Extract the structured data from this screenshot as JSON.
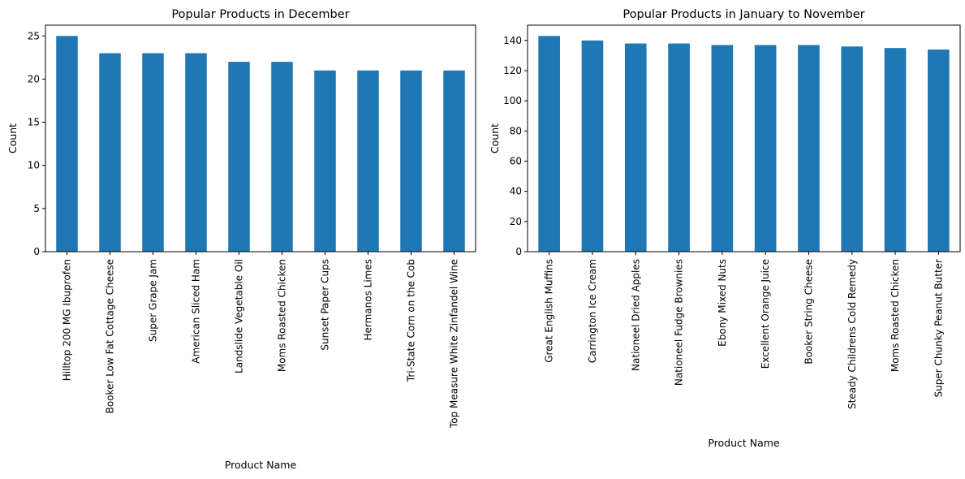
{
  "chart_data": [
    {
      "type": "bar",
      "title": "Popular Products in December",
      "xlabel": "Product Name",
      "ylabel": "Count",
      "ylim": [
        0,
        26.25
      ],
      "yticks": [
        0,
        5,
        10,
        15,
        20,
        25
      ],
      "legend": "none",
      "grid": false,
      "color": "#1f77b4",
      "categories": [
        "Hilltop 200 MG Ibuprofen",
        "Booker Low Fat Cottage Cheese",
        "Super Grape Jam",
        "American Sliced Ham",
        "Landslide Vegetable Oil",
        "Moms Roasted Chicken",
        "Sunset Paper Cups",
        "Hermanos Limes",
        "Tri-State Corn on the Cob",
        "Top Measure White Zinfandel Wine"
      ],
      "values": [
        25,
        23,
        23,
        23,
        22,
        22,
        21,
        21,
        21,
        21
      ]
    },
    {
      "type": "bar",
      "title": "Popular Products in January to November",
      "xlabel": "Product Name",
      "ylabel": "Count",
      "ylim": [
        0,
        150.15
      ],
      "yticks": [
        0,
        20,
        40,
        60,
        80,
        100,
        120,
        140
      ],
      "legend": "none",
      "grid": false,
      "color": "#1f77b4",
      "categories": [
        "Great English Muffins",
        "Carrington Ice Cream",
        "Nationeel Dried Apples",
        "Nationeel Fudge Brownies",
        "Ebony Mixed Nuts",
        "Excellent Orange Juice",
        "Booker String Cheese",
        "Steady Childrens Cold Remedy",
        "Moms Roasted Chicken",
        "Super Chunky Peanut Butter"
      ],
      "values": [
        143,
        140,
        138,
        138,
        137,
        137,
        137,
        136,
        135,
        134
      ]
    }
  ]
}
